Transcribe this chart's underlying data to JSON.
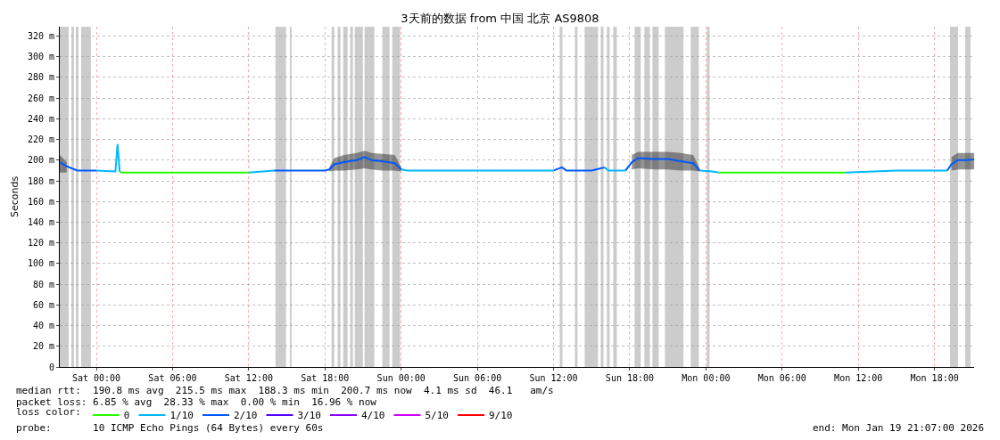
{
  "chart_data": {
    "type": "line",
    "title": "3天前的数据 from 中国 北京 AS9808",
    "ylabel": "Seconds",
    "legend_title": "loss color:",
    "legend": "bottom",
    "grid": true,
    "marker": "none",
    "line_style": "solid",
    "xlim": [
      "2026-01-16T21:07",
      "2026-01-19T21:07"
    ],
    "xticks": [
      {
        "value": "2026-01-17T00:00",
        "label": "Sat 00:00"
      },
      {
        "value": "2026-01-17T06:00",
        "label": "Sat 06:00"
      },
      {
        "value": "2026-01-17T12:00",
        "label": "Sat 12:00"
      },
      {
        "value": "2026-01-17T18:00",
        "label": "Sat 18:00"
      },
      {
        "value": "2026-01-18T00:00",
        "label": "Sun 00:00"
      },
      {
        "value": "2026-01-18T06:00",
        "label": "Sun 06:00"
      },
      {
        "value": "2026-01-18T12:00",
        "label": "Sun 12:00"
      },
      {
        "value": "2026-01-18T18:00",
        "label": "Sun 18:00"
      },
      {
        "value": "2026-01-19T00:00",
        "label": "Mon 00:00"
      },
      {
        "value": "2026-01-19T06:00",
        "label": "Mon 06:00"
      },
      {
        "value": "2026-01-19T12:00",
        "label": "Mon 12:00"
      },
      {
        "value": "2026-01-19T18:00",
        "label": "Mon 18:00"
      }
    ],
    "ylim": [
      0,
      329
    ],
    "yticks": [
      0,
      {
        "value": 20,
        "label": "20 m"
      },
      {
        "value": 40,
        "label": "40 m"
      },
      {
        "value": 60,
        "label": "60 m"
      },
      {
        "value": 80,
        "label": "80 m"
      },
      {
        "value": 100,
        "label": "100 m"
      },
      {
        "value": 120,
        "label": "120 m"
      },
      {
        "value": 140,
        "label": "140 m"
      },
      {
        "value": 160,
        "label": "160 m"
      },
      {
        "value": 180,
        "label": "180 m"
      },
      {
        "value": 200,
        "label": "200 m"
      },
      {
        "value": 220,
        "label": "220 m"
      },
      {
        "value": 240,
        "label": "240 m"
      },
      {
        "value": 260,
        "label": "260 m"
      },
      {
        "value": 280,
        "label": "280 m"
      },
      {
        "value": 300,
        "label": "300 m"
      },
      {
        "value": 320,
        "label": "320 m"
      }
    ],
    "series": [
      {
        "name": "0",
        "color": "#26ff00",
        "x": [
          "2026-01-17T01:50",
          "2026-01-17T02:00",
          "2026-01-17T06:00",
          "2026-01-17T10:00",
          "2026-01-17T12:00",
          null,
          "2026-01-19T01:00",
          "2026-01-19T06:00",
          "2026-01-19T11:00"
        ],
        "values": [
          189,
          188,
          188,
          188,
          188,
          null,
          188,
          188,
          188
        ]
      },
      {
        "name": "1/10",
        "color": "#00b8ff",
        "x": [
          "2026-01-17T00:00",
          "2026-01-17T01:30",
          "2026-01-17T01:40",
          "2026-01-17T01:50",
          null,
          "2026-01-17T12:00",
          "2026-01-17T14:00",
          null,
          "2026-01-18T00:00",
          "2026-01-18T00:30",
          "2026-01-18T04:00",
          "2026-01-18T08:00",
          "2026-01-18T12:00",
          null,
          "2026-01-18T16:00",
          "2026-01-18T16:20",
          "2026-01-18T17:40",
          null,
          "2026-01-18T23:30",
          "2026-01-19T00:30",
          "2026-01-19T01:00",
          null,
          "2026-01-19T11:00",
          "2026-01-19T15:00",
          "2026-01-19T19:00"
        ],
        "values": [
          190,
          189,
          215.5,
          189,
          null,
          188,
          190,
          null,
          191,
          190,
          190,
          190,
          190,
          null,
          193,
          190,
          190,
          null,
          190,
          189,
          188,
          null,
          188,
          190,
          190
        ]
      },
      {
        "name": "2/10",
        "color": "#0059ff",
        "x": [
          "2026-01-16T21:07",
          "2026-01-16T21:40",
          "2026-01-16T22:30",
          "2026-01-17T00:00",
          null,
          "2026-01-17T14:00",
          "2026-01-17T16:00",
          "2026-01-17T18:00",
          "2026-01-17T18:20",
          "2026-01-17T18:45",
          "2026-01-17T19:30",
          "2026-01-17T20:30",
          "2026-01-17T21:07",
          "2026-01-17T21:40",
          "2026-01-17T22:30",
          "2026-01-17T23:30",
          "2026-01-18T00:00",
          null,
          "2026-01-18T12:00",
          "2026-01-18T12:40",
          "2026-01-18T13:00",
          "2026-01-18T15:00",
          "2026-01-18T16:00",
          null,
          "2026-01-18T17:40",
          "2026-01-18T18:10",
          "2026-01-18T18:40",
          "2026-01-18T20:00",
          "2026-01-18T21:00",
          "2026-01-18T22:00",
          "2026-01-18T23:00",
          "2026-01-18T23:30",
          null,
          "2026-01-19T19:00",
          "2026-01-19T19:20",
          "2026-01-19T19:50",
          "2026-01-19T20:30",
          "2026-01-19T21:07"
        ],
        "values": [
          198,
          194,
          190,
          190,
          null,
          190,
          190,
          190,
          191,
          196,
          198,
          200,
          203,
          200,
          199,
          197,
          191,
          null,
          190,
          193,
          190,
          190,
          193,
          null,
          190,
          198,
          202,
          201,
          201,
          199,
          197,
          190,
          null,
          190,
          196,
          200,
          200,
          200.7
        ],
        "lower": [
          188,
          188,
          null,
          null,
          null,
          null,
          null,
          null,
          189,
          190,
          190,
          191,
          192,
          191,
          190,
          190,
          189,
          null,
          null,
          null,
          null,
          null,
          null,
          null,
          null,
          191,
          192,
          191,
          191,
          190,
          190,
          189,
          null,
          null,
          190,
          191,
          191,
          191
        ],
        "upper": [
          205,
          198,
          null,
          null,
          null,
          null,
          null,
          null,
          193,
          202,
          205,
          207,
          209,
          207,
          206,
          205,
          193,
          null,
          null,
          null,
          null,
          null,
          null,
          null,
          null,
          205,
          208,
          208,
          208,
          207,
          205,
          192,
          null,
          null,
          203,
          207,
          207,
          207
        ]
      },
      {
        "name": "3/10",
        "color": "#5500ff"
      },
      {
        "name": "4/10",
        "color": "#8800ff"
      },
      {
        "name": "5/10",
        "color": "#cc00ff"
      },
      {
        "name": "9/10",
        "color": "#ff0000"
      }
    ],
    "bands": [
      {
        "axis": "x",
        "from": "2026-01-16T21:07",
        "to": "2026-01-16T21:49",
        "color": "#cccccc"
      },
      {
        "axis": "x",
        "from": "2026-01-16T22:02",
        "to": "2026-01-16T22:14",
        "color": "#cccccc"
      },
      {
        "axis": "x",
        "from": "2026-01-16T22:23",
        "to": "2026-01-16T22:35",
        "color": "#cccccc"
      },
      {
        "axis": "x",
        "from": "2026-01-16T22:48",
        "to": "2026-01-16T23:34",
        "color": "#cccccc"
      },
      {
        "axis": "x",
        "from": "2026-01-17T14:06",
        "to": "2026-01-17T14:56",
        "color": "#cccccc"
      },
      {
        "axis": "x",
        "from": "2026-01-17T15:14",
        "to": "2026-01-17T15:22",
        "color": "#cccccc"
      },
      {
        "axis": "x",
        "from": "2026-01-17T18:31",
        "to": "2026-01-17T18:44",
        "color": "#cccccc"
      },
      {
        "axis": "x",
        "from": "2026-01-17T19:00",
        "to": "2026-01-17T19:13",
        "color": "#cccccc"
      },
      {
        "axis": "x",
        "from": "2026-01-17T19:26",
        "to": "2026-01-17T19:47",
        "color": "#cccccc"
      },
      {
        "axis": "x",
        "from": "2026-01-17T19:59",
        "to": "2026-01-17T20:12",
        "color": "#cccccc"
      },
      {
        "axis": "x",
        "from": "2026-01-17T20:21",
        "to": "2026-01-17T20:59",
        "color": "#cccccc"
      },
      {
        "axis": "x",
        "from": "2026-01-17T21:07",
        "to": "2026-01-17T21:53",
        "color": "#cccccc"
      },
      {
        "axis": "x",
        "from": "2026-01-17T22:31",
        "to": "2026-01-17T23:05",
        "color": "#cccccc"
      },
      {
        "axis": "x",
        "from": "2026-01-17T23:18",
        "to": "2026-01-17T23:55",
        "color": "#cccccc"
      },
      {
        "axis": "x",
        "from": "2026-01-18T12:29",
        "to": "2026-01-18T12:42",
        "color": "#cccccc"
      },
      {
        "axis": "x",
        "from": "2026-01-18T13:41",
        "to": "2026-01-18T13:53",
        "color": "#cccccc"
      },
      {
        "axis": "x",
        "from": "2026-01-18T14:27",
        "to": "2026-01-18T15:30",
        "color": "#cccccc"
      },
      {
        "axis": "x",
        "from": "2026-01-18T15:43",
        "to": "2026-01-18T15:56",
        "color": "#cccccc"
      },
      {
        "axis": "x",
        "from": "2026-01-18T16:12",
        "to": "2026-01-18T16:25",
        "color": "#cccccc"
      },
      {
        "axis": "x",
        "from": "2026-01-18T16:42",
        "to": "2026-01-18T16:59",
        "color": "#cccccc"
      },
      {
        "axis": "x",
        "from": "2026-01-18T18:23",
        "to": "2026-01-18T18:52",
        "color": "#cccccc"
      },
      {
        "axis": "x",
        "from": "2026-01-18T19:09",
        "to": "2026-01-18T19:35",
        "color": "#cccccc"
      },
      {
        "axis": "x",
        "from": "2026-01-18T19:47",
        "to": "2026-01-18T20:17",
        "color": "#cccccc"
      },
      {
        "axis": "x",
        "from": "2026-01-18T20:46",
        "to": "2026-01-18T22:14",
        "color": "#cccccc"
      },
      {
        "axis": "x",
        "from": "2026-01-18T22:48",
        "to": "2026-01-18T23:26",
        "color": "#cccccc"
      },
      {
        "axis": "x",
        "from": "2026-01-19T00:04",
        "to": "2026-01-19T00:17",
        "color": "#cccccc"
      },
      {
        "axis": "x",
        "from": "2026-01-19T19:13",
        "to": "2026-01-19T19:51",
        "color": "#cccccc"
      },
      {
        "axis": "x",
        "from": "2026-01-19T20:25",
        "to": "2026-01-19T20:50",
        "color": "#cccccc"
      }
    ],
    "annotations": [
      "median rtt:  190.8 ms avg  215.5 ms max  188.3 ms min  200.7 ms now  4.1 ms sd  46.1   am/s",
      "packet loss: 6.85 % avg  28.33 % max  0.00 % min  16.96 % now",
      "probe:       10 ICMP Echo Pings (64 Bytes) every 60s",
      "end: Mon Jan 19 21:07:00 2026"
    ]
  }
}
